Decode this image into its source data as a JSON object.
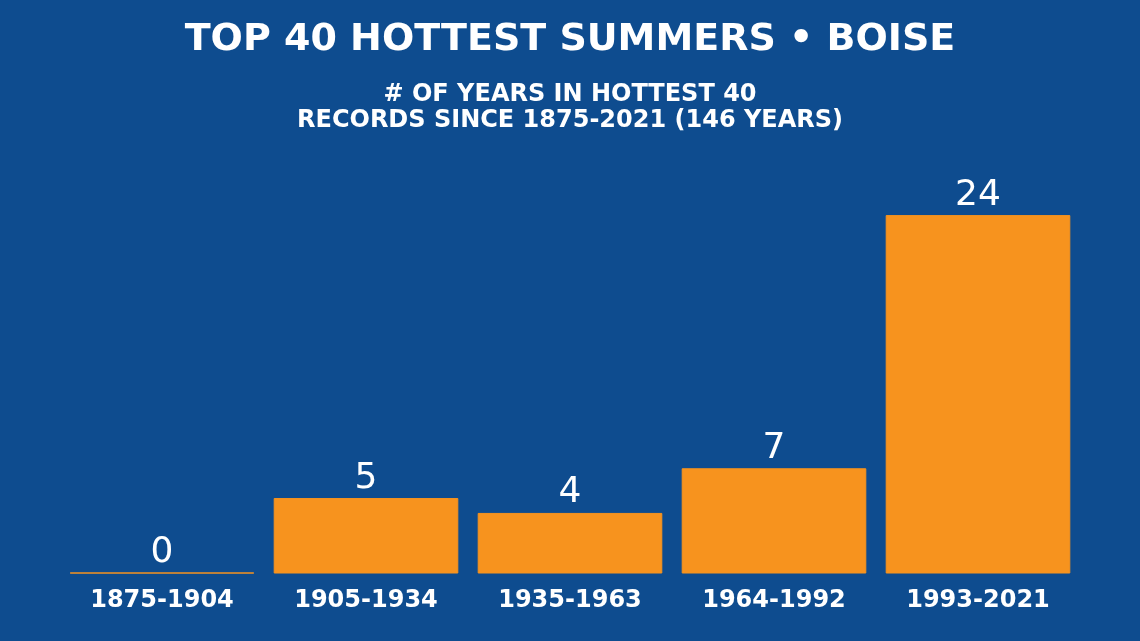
{
  "chart_data": {
    "type": "bar",
    "title": "TOP 40 HOTTEST SUMMERS • BOISE",
    "subtitle": "# OF YEARS IN HOTTEST 40\nRECORDS SINCE 1875-2021 (146 YEARS)",
    "categories": [
      "1875-1904",
      "1905-1934",
      "1935-1963",
      "1964-1992",
      "1993-2021"
    ],
    "values": [
      0,
      5,
      4,
      7,
      24
    ],
    "color": "#f7931e",
    "data_labels": true,
    "grid": false
  }
}
